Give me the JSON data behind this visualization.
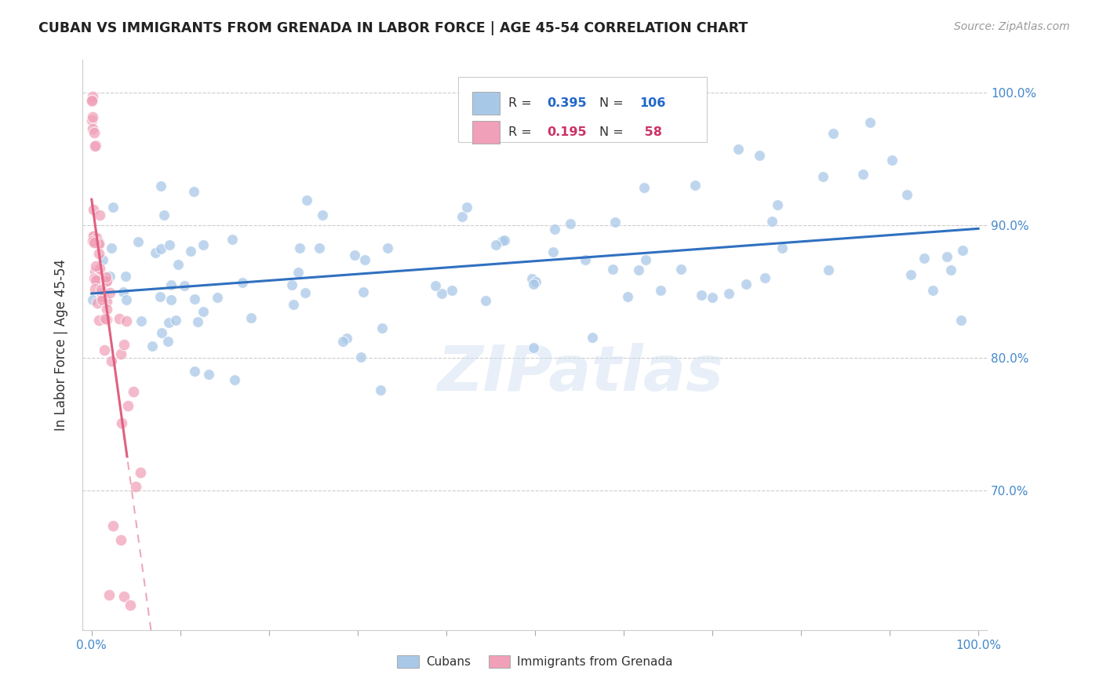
{
  "title": "CUBAN VS IMMIGRANTS FROM GRENADA IN LABOR FORCE | AGE 45-54 CORRELATION CHART",
  "source": "Source: ZipAtlas.com",
  "ylabel": "In Labor Force | Age 45-54",
  "xlim": [
    -0.01,
    1.01
  ],
  "ylim": [
    0.595,
    1.025
  ],
  "yticks": [
    0.7,
    0.8,
    0.9,
    1.0
  ],
  "ytick_labels": [
    "70.0%",
    "80.0%",
    "90.0%",
    "100.0%"
  ],
  "xticks": [
    0.0,
    0.1,
    0.2,
    0.3,
    0.4,
    0.5,
    0.6,
    0.7,
    0.8,
    0.9,
    1.0
  ],
  "xtick_labels": [
    "0.0%",
    "",
    "",
    "",
    "",
    "",
    "",
    "",
    "",
    "",
    "100.0%"
  ],
  "blue_R": 0.395,
  "blue_N": 106,
  "pink_R": 0.195,
  "pink_N": 58,
  "blue_color": "#a8c8e8",
  "blue_line_color": "#3070c0",
  "pink_color": "#f0a0b8",
  "pink_line_color": "#e06080",
  "watermark": "ZIPatlas",
  "legend_label_blue": "Cubans",
  "legend_label_pink": "Immigrants from Grenada"
}
